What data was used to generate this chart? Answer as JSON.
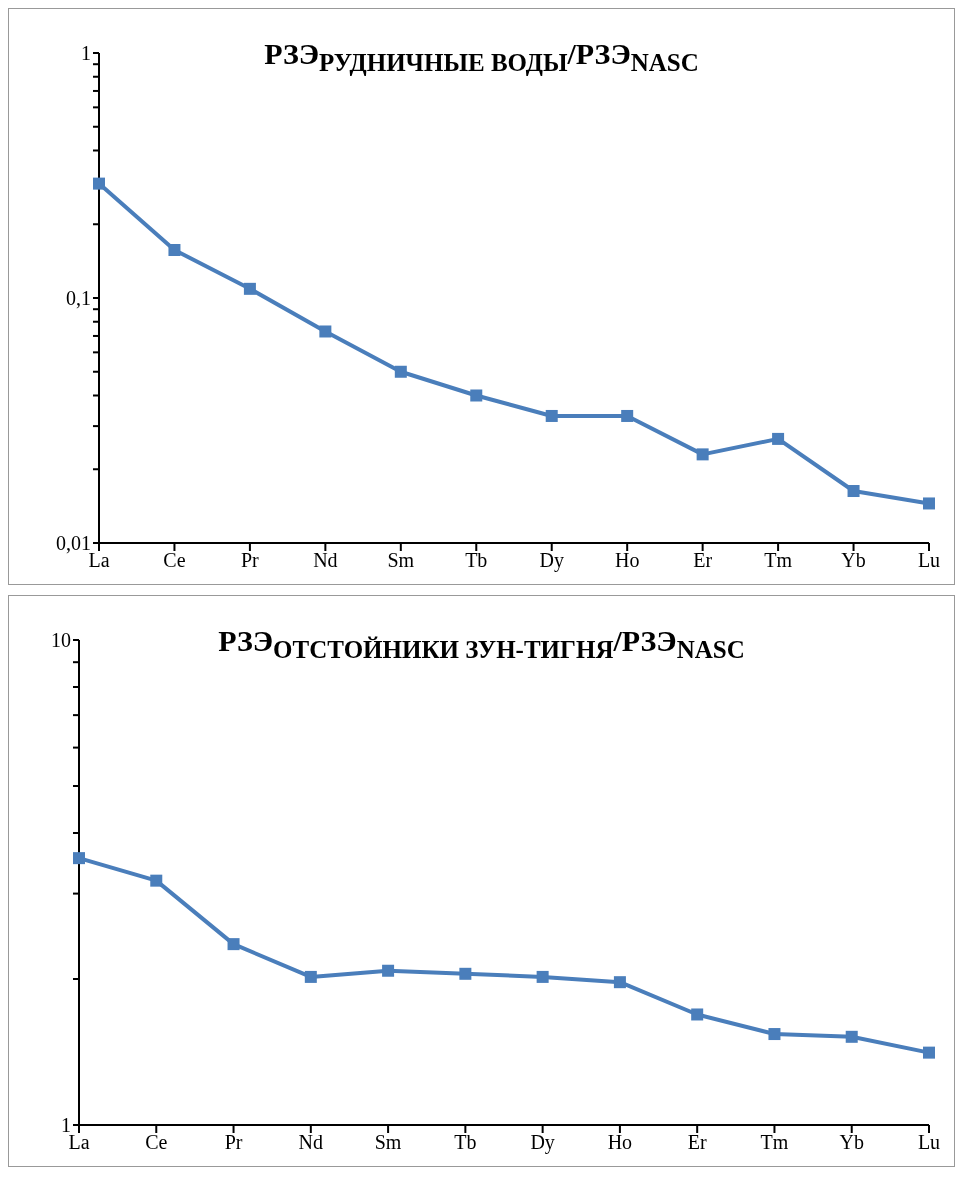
{
  "chart_data": [
    {
      "type": "line",
      "title": "РЗЭ$_{РУДНИЧНЫЕ ВОДЫ}$/РЗЭ$_{NASC}$",
      "categories": [
        "La",
        "Ce",
        "Pr",
        "Nd",
        "Sm",
        "Tb",
        "Dy",
        "Ho",
        "Er",
        "Tm",
        "Yb",
        "Lu"
      ],
      "log": "y",
      "ylim": [
        0.01,
        1
      ],
      "yticks": [
        {
          "value": 0.01,
          "label": "0,01"
        },
        {
          "value": 0.02,
          "label": null
        },
        {
          "value": 0.03,
          "label": null
        },
        {
          "value": 0.04,
          "label": null
        },
        {
          "value": 0.05,
          "label": null
        },
        {
          "value": 0.06,
          "label": null
        },
        {
          "value": 0.07,
          "label": null
        },
        {
          "value": 0.08,
          "label": null
        },
        {
          "value": 0.09,
          "label": null
        },
        {
          "value": 0.1,
          "label": "0,1"
        },
        {
          "value": 0.2,
          "label": null
        },
        {
          "value": 0.3,
          "label": null
        },
        {
          "value": 0.4,
          "label": null
        },
        {
          "value": 0.5,
          "label": null
        },
        {
          "value": 0.6,
          "label": null
        },
        {
          "value": 0.7,
          "label": null
        },
        {
          "value": 0.8,
          "label": null
        },
        {
          "value": 0.9,
          "label": null
        },
        {
          "value": 1,
          "label": "1"
        }
      ],
      "marker": "square",
      "series": [
        {
          "color": "#4a7ebb",
          "values": [
            0.293,
            0.157,
            0.109,
            0.073,
            0.05,
            0.04,
            0.033,
            0.033,
            0.023,
            0.0266,
            0.0163,
            0.0145
          ]
        }
      ]
    },
    {
      "type": "line",
      "title": "РЗЭ$_{ОТСТОЙНИКИ ЗУН-ТИГНЯ}$/РЗЭ$_{NASC}$",
      "categories": [
        "La",
        "Ce",
        "Pr",
        "Nd",
        "Sm",
        "Tb",
        "Dy",
        "Ho",
        "Er",
        "Tm",
        "Yb",
        "Lu"
      ],
      "log": "y",
      "ylim": [
        1,
        10
      ],
      "yticks": [
        1,
        {
          "value": 2,
          "label": null
        },
        {
          "value": 3,
          "label": null
        },
        {
          "value": 4,
          "label": null
        },
        {
          "value": 5,
          "label": null
        },
        {
          "value": 6,
          "label": null
        },
        {
          "value": 7,
          "label": null
        },
        {
          "value": 8,
          "label": null
        },
        {
          "value": 9,
          "label": null
        },
        10
      ],
      "marker": "square",
      "series": [
        {
          "color": "#4a7ebb",
          "values": [
            3.55,
            3.19,
            2.36,
            2.02,
            2.08,
            2.05,
            2.02,
            1.97,
            1.69,
            1.54,
            1.52,
            1.41
          ]
        }
      ]
    }
  ]
}
